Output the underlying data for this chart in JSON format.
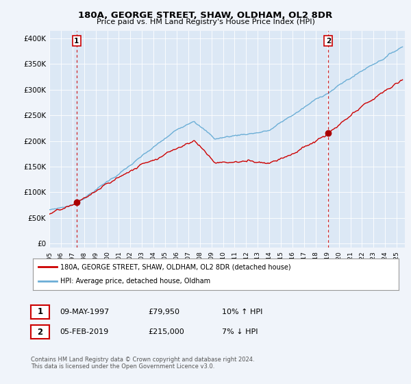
{
  "title": "180A, GEORGE STREET, SHAW, OLDHAM, OL2 8DR",
  "subtitle": "Price paid vs. HM Land Registry's House Price Index (HPI)",
  "yticks": [
    0,
    50000,
    100000,
    150000,
    200000,
    250000,
    300000,
    350000,
    400000
  ],
  "ytick_labels": [
    "£0",
    "£50K",
    "£100K",
    "£150K",
    "£200K",
    "£250K",
    "£300K",
    "£350K",
    "£400K"
  ],
  "ylim": [
    -8000,
    415000
  ],
  "xlim_start": 1995.0,
  "xlim_end": 2025.7,
  "sale1_x": 1997.36,
  "sale1_y": 79950,
  "sale2_x": 2019.09,
  "sale2_y": 215000,
  "hpi_color": "#6baed6",
  "price_color": "#cc0000",
  "sale_marker_color": "#aa0000",
  "dashed_line_color": "#cc0000",
  "legend1_label": "180A, GEORGE STREET, SHAW, OLDHAM, OL2 8DR (detached house)",
  "legend2_label": "HPI: Average price, detached house, Oldham",
  "table_row1": [
    "1",
    "09-MAY-1997",
    "£79,950",
    "10% ↑ HPI"
  ],
  "table_row2": [
    "2",
    "05-FEB-2019",
    "£215,000",
    "7% ↓ HPI"
  ],
  "footer": "Contains HM Land Registry data © Crown copyright and database right 2024.\nThis data is licensed under the Open Government Licence v3.0.",
  "background_color": "#f0f4fa",
  "plot_bg_color": "#dce8f5"
}
